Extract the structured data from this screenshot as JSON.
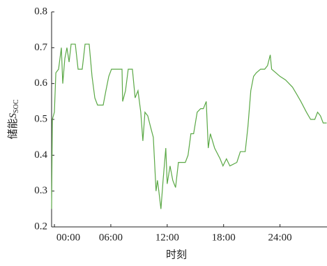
{
  "chart_data": {
    "type": "line",
    "x_label": "时刻",
    "y_label": {
      "text": "储能",
      "symbol": "S",
      "subscript": "SOC"
    },
    "xlim": [
      -0.3,
      29.0
    ],
    "xticks": [
      {
        "value": 0,
        "label": "00:00"
      },
      {
        "value": 6,
        "label": "06:00"
      },
      {
        "value": 12,
        "label": "12:00"
      },
      {
        "value": 18,
        "label": "18:00"
      },
      {
        "value": 24,
        "label": "24:00"
      }
    ],
    "ylim": [
      0.2,
      0.8
    ],
    "yticks": [
      0.2,
      0.3,
      0.4,
      0.5,
      0.6,
      0.7,
      0.8
    ],
    "grid": false,
    "series": [
      {
        "name": null,
        "color": "#5aa845",
        "x": [
          -0.3,
          -0.22,
          0,
          0.15,
          0.44,
          0.74,
          0.89,
          1.11,
          1.33,
          1.56,
          1.78,
          2.22,
          2.52,
          2.96,
          3.26,
          3.7,
          4.0,
          4.3,
          4.59,
          5.19,
          5.48,
          5.78,
          6.07,
          6.67,
          7.19,
          7.26,
          7.56,
          7.85,
          8.3,
          8.59,
          8.89,
          9.19,
          9.41,
          9.63,
          9.93,
          10.22,
          10.52,
          10.81,
          10.96,
          11.11,
          11.33,
          11.56,
          11.85,
          12.0,
          12.3,
          12.59,
          12.89,
          13.19,
          13.48,
          13.93,
          14.22,
          14.52,
          14.81,
          15.19,
          15.56,
          15.85,
          16.15,
          16.37,
          16.59,
          17.04,
          17.63,
          17.93,
          18.3,
          18.67,
          19.41,
          19.78,
          20.3,
          20.59,
          20.89,
          21.19,
          21.48,
          21.93,
          22.37,
          22.67,
          22.96,
          23.11,
          23.56,
          24.0,
          24.59,
          25.33,
          25.78,
          26.22,
          26.81,
          27.26,
          27.7,
          28.0,
          28.3,
          28.59,
          28.96
        ],
        "values": [
          0.25,
          0.5,
          0.52,
          0.63,
          0.64,
          0.7,
          0.6,
          0.67,
          0.7,
          0.66,
          0.71,
          0.71,
          0.64,
          0.64,
          0.71,
          0.71,
          0.62,
          0.56,
          0.54,
          0.54,
          0.58,
          0.62,
          0.64,
          0.64,
          0.64,
          0.55,
          0.58,
          0.64,
          0.64,
          0.56,
          0.58,
          0.52,
          0.44,
          0.52,
          0.51,
          0.48,
          0.45,
          0.3,
          0.33,
          0.3,
          0.25,
          0.33,
          0.42,
          0.32,
          0.37,
          0.33,
          0.31,
          0.38,
          0.38,
          0.38,
          0.4,
          0.46,
          0.46,
          0.52,
          0.53,
          0.53,
          0.55,
          0.42,
          0.46,
          0.42,
          0.39,
          0.37,
          0.39,
          0.37,
          0.38,
          0.41,
          0.41,
          0.48,
          0.58,
          0.62,
          0.63,
          0.64,
          0.64,
          0.65,
          0.68,
          0.64,
          0.63,
          0.62,
          0.61,
          0.59,
          0.57,
          0.55,
          0.52,
          0.5,
          0.5,
          0.52,
          0.51,
          0.49,
          0.49
        ]
      }
    ]
  }
}
